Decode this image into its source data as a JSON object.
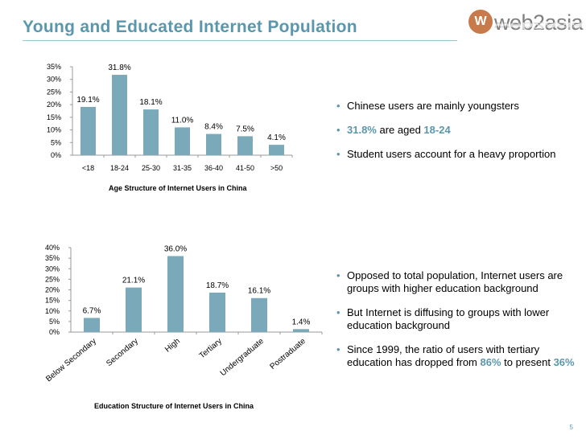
{
  "slide": {
    "title": "Young and Educated Internet Population",
    "page_number": "5",
    "logo_text": "web2asia",
    "logo_mark": "W"
  },
  "chart_data": [
    {
      "type": "bar",
      "title": "Age Structure of Internet Users in China",
      "categories": [
        "<18",
        "18-24",
        "25-30",
        "31-35",
        "36-40",
        "41-50",
        ">50"
      ],
      "values": [
        19.1,
        31.8,
        18.1,
        11.0,
        8.4,
        7.5,
        4.1
      ],
      "data_labels": [
        "19.1%",
        "31.8%",
        "18.1%",
        "11.0%",
        "8.4%",
        "7.5%",
        "4.1%"
      ],
      "ylim": [
        0,
        35
      ],
      "yticks": [
        "0%",
        "5%",
        "10%",
        "15%",
        "20%",
        "25%",
        "30%",
        "35%"
      ],
      "grid": false,
      "bar_color": "#7aa9b9"
    },
    {
      "type": "bar",
      "title": "Education Structure of Internet Users in China",
      "categories": [
        "Below Secondary",
        "Secondary",
        "High",
        "Tertiary",
        "Undergraduate",
        "Postraduate"
      ],
      "values": [
        6.7,
        21.1,
        36.0,
        18.7,
        16.1,
        1.4
      ],
      "data_labels": [
        "6.7%",
        "21.1%",
        "36.0%",
        "18.7%",
        "16.1%",
        "1.4%"
      ],
      "ylim": [
        0,
        40
      ],
      "yticks": [
        "0%",
        "5%",
        "10%",
        "15%",
        "20%",
        "25%",
        "30%",
        "35%",
        "40%"
      ],
      "grid": false,
      "bar_color": "#7aa9b9"
    }
  ],
  "bullets_age": [
    {
      "text": "Chinese users are mainly youngsters"
    },
    {
      "hl1": "31.8%",
      "mid": " are aged ",
      "hl2": "18-24"
    },
    {
      "text": "Student users account for a heavy proportion"
    }
  ],
  "bullets_edu": [
    {
      "text": "Opposed to total population, Internet users are groups with higher education background"
    },
    {
      "text": "But Internet is diffusing to groups with lower education background"
    },
    {
      "pre": "Since 1999, the ratio of users with tertiary education has dropped from ",
      "hl1": "86%",
      "mid": " to present ",
      "hl2": "36%"
    }
  ]
}
